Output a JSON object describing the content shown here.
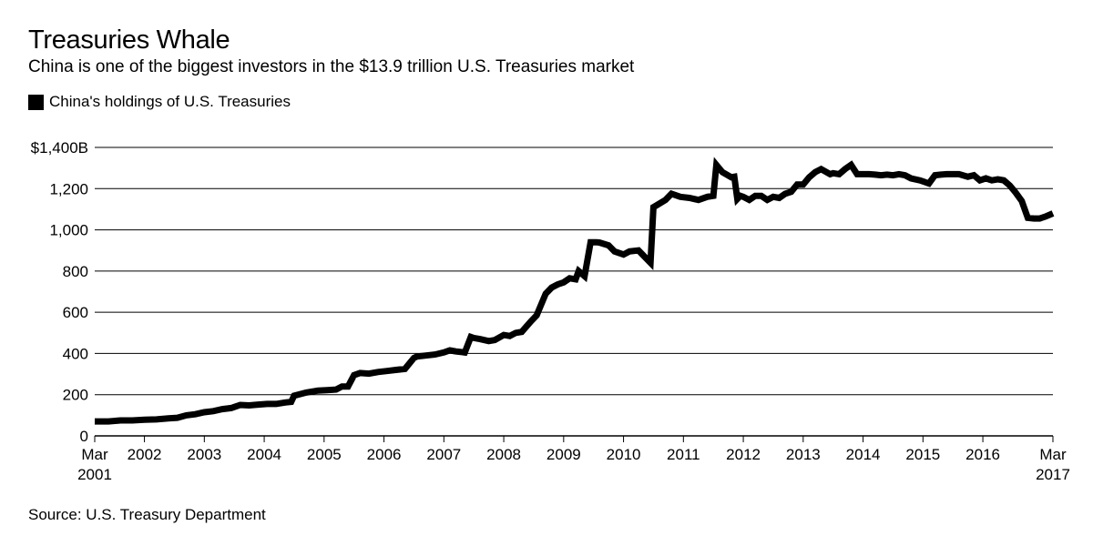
{
  "title": "Treasuries Whale",
  "subtitle": "China is one of the biggest investors in the $13.9 trillion U.S. Treasuries market",
  "source": "Source: U.S. Treasury Department",
  "colors": {
    "line": "#000000",
    "grid": "#000000",
    "background": "#ffffff"
  },
  "chart_data": {
    "type": "line",
    "title": "Treasuries Whale",
    "xlabel": "",
    "ylabel": "",
    "ylim": [
      0,
      1400
    ],
    "xlim": [
      2001.17,
      2017.17
    ],
    "grid": true,
    "legend_position": "top-left",
    "y_ticks": [
      {
        "value": 0,
        "label": "0"
      },
      {
        "value": 200,
        "label": "200"
      },
      {
        "value": 400,
        "label": "400"
      },
      {
        "value": 600,
        "label": "600"
      },
      {
        "value": 800,
        "label": "800"
      },
      {
        "value": 1000,
        "label": "1,000"
      },
      {
        "value": 1200,
        "label": "1,200"
      },
      {
        "value": 1400,
        "label": "$1,400B"
      }
    ],
    "x_ticks": [
      {
        "value": 2001.17,
        "label": "Mar",
        "label2": "2001"
      },
      {
        "value": 2002,
        "label": "2002"
      },
      {
        "value": 2003,
        "label": "2003"
      },
      {
        "value": 2004,
        "label": "2004"
      },
      {
        "value": 2005,
        "label": "2005"
      },
      {
        "value": 2006,
        "label": "2006"
      },
      {
        "value": 2007,
        "label": "2007"
      },
      {
        "value": 2008,
        "label": "2008"
      },
      {
        "value": 2009,
        "label": "2009"
      },
      {
        "value": 2010,
        "label": "2010"
      },
      {
        "value": 2011,
        "label": "2011"
      },
      {
        "value": 2012,
        "label": "2012"
      },
      {
        "value": 2013,
        "label": "2013"
      },
      {
        "value": 2014,
        "label": "2014"
      },
      {
        "value": 2015,
        "label": "2015"
      },
      {
        "value": 2016,
        "label": "2016"
      },
      {
        "value": 2017.17,
        "label": "Mar",
        "label2": "2017"
      }
    ],
    "series": [
      {
        "name": "China's holdings of U.S. Treasuries",
        "x": [
          2001.17,
          2001.4,
          2001.6,
          2001.8,
          2002.0,
          2002.2,
          2002.4,
          2002.55,
          2002.7,
          2002.85,
          2003.0,
          2003.15,
          2003.3,
          2003.45,
          2003.6,
          2003.75,
          2003.9,
          2004.05,
          2004.2,
          2004.35,
          2004.45,
          2004.5,
          2004.7,
          2004.9,
          2005.05,
          2005.2,
          2005.3,
          2005.4,
          2005.5,
          2005.6,
          2005.75,
          2005.9,
          2006.05,
          2006.2,
          2006.35,
          2006.5,
          2006.55,
          2006.7,
          2006.85,
          2007.0,
          2007.1,
          2007.2,
          2007.35,
          2007.45,
          2007.5,
          2007.6,
          2007.75,
          2007.85,
          2008.0,
          2008.1,
          2008.2,
          2008.3,
          2008.45,
          2008.55,
          2008.7,
          2008.8,
          2008.9,
          2009.0,
          2009.1,
          2009.2,
          2009.25,
          2009.35,
          2009.45,
          2009.55,
          2009.6,
          2009.75,
          2009.85,
          2010.0,
          2010.1,
          2010.25,
          2010.35,
          2010.45,
          2010.5,
          2010.7,
          2010.8,
          2010.95,
          2011.1,
          2011.25,
          2011.4,
          2011.5,
          2011.55,
          2011.65,
          2011.8,
          2011.85,
          2011.9,
          2011.95,
          2012.0,
          2012.1,
          2012.2,
          2012.3,
          2012.4,
          2012.5,
          2012.6,
          2012.7,
          2012.8,
          2012.9,
          2013.0,
          2013.1,
          2013.2,
          2013.3,
          2013.45,
          2013.5,
          2013.6,
          2013.7,
          2013.8,
          2013.9,
          2014.0,
          2014.1,
          2014.2,
          2014.3,
          2014.4,
          2014.5,
          2014.6,
          2014.7,
          2014.8,
          2014.95,
          2015.05,
          2015.1,
          2015.2,
          2015.3,
          2015.4,
          2015.5,
          2015.6,
          2015.75,
          2015.85,
          2015.95,
          2016.05,
          2016.15,
          2016.25,
          2016.35,
          2016.45,
          2016.55,
          2016.65,
          2016.75,
          2016.85,
          2016.95,
          2017.05,
          2017.17
        ],
        "values": [
          70,
          70,
          75,
          75,
          78,
          80,
          85,
          88,
          100,
          105,
          115,
          120,
          130,
          135,
          150,
          148,
          152,
          155,
          155,
          162,
          165,
          195,
          210,
          220,
          222,
          225,
          240,
          240,
          295,
          305,
          302,
          310,
          315,
          320,
          325,
          378,
          385,
          390,
          395,
          405,
          415,
          410,
          405,
          480,
          475,
          470,
          460,
          465,
          490,
          485,
          500,
          505,
          555,
          585,
          690,
          720,
          735,
          745,
          765,
          760,
          800,
          775,
          940,
          940,
          938,
          925,
          895,
          880,
          895,
          900,
          870,
          840,
          1110,
          1145,
          1175,
          1160,
          1155,
          1145,
          1160,
          1165,
          1315,
          1280,
          1255,
          1258,
          1150,
          1165,
          1160,
          1145,
          1165,
          1165,
          1145,
          1160,
          1155,
          1175,
          1185,
          1220,
          1220,
          1255,
          1280,
          1295,
          1270,
          1275,
          1270,
          1295,
          1315,
          1270,
          1270,
          1270,
          1268,
          1265,
          1268,
          1265,
          1270,
          1265,
          1250,
          1240,
          1230,
          1225,
          1265,
          1268,
          1270,
          1270,
          1270,
          1258,
          1265,
          1240,
          1250,
          1240,
          1245,
          1240,
          1215,
          1180,
          1140,
          1058,
          1055,
          1055,
          1065,
          1080
        ]
      }
    ]
  }
}
